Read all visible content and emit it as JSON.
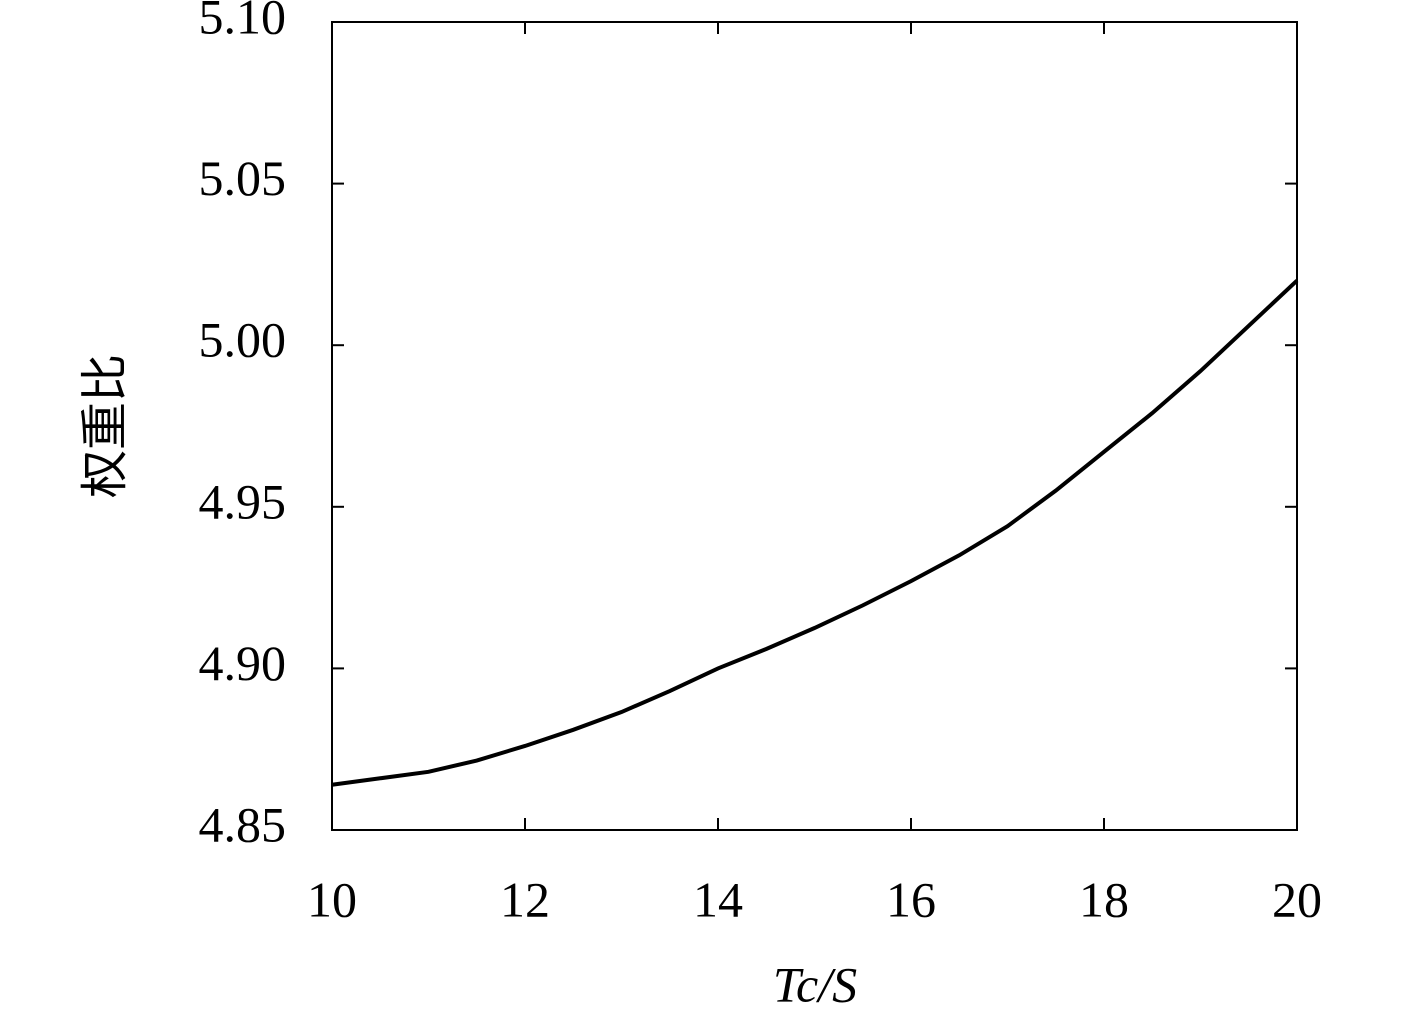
{
  "chart_data": {
    "type": "line",
    "x_label": "Tc/S",
    "y_label": "权重比",
    "x": [
      10,
      10.5,
      11,
      11.5,
      12,
      12.5,
      13,
      13.5,
      14,
      14.5,
      15,
      15.5,
      16,
      16.5,
      17,
      17.5,
      18,
      18.5,
      19,
      19.5,
      20
    ],
    "series": [
      {
        "color": "#000000",
        "values": [
          4.864,
          4.866,
          4.868,
          4.8715,
          4.876,
          4.881,
          4.8865,
          4.893,
          4.9,
          4.906,
          4.9125,
          4.9195,
          4.927,
          4.935,
          4.944,
          4.955,
          4.967,
          4.979,
          4.992,
          5.006,
          5.02
        ]
      }
    ],
    "xlim": [
      10,
      20
    ],
    "xticks": [
      10,
      12,
      14,
      16,
      18,
      20
    ],
    "ylim": [
      4.85,
      5.1
    ],
    "yticks": [
      {
        "value": 4.85,
        "label": "4.85"
      },
      {
        "value": 4.9,
        "label": "4.90"
      },
      {
        "value": 4.95,
        "label": "4.95"
      },
      {
        "value": 5.0,
        "label": "5.00"
      },
      {
        "value": 5.05,
        "label": "5.05"
      },
      {
        "value": 5.1,
        "label": "5.10"
      }
    ]
  }
}
